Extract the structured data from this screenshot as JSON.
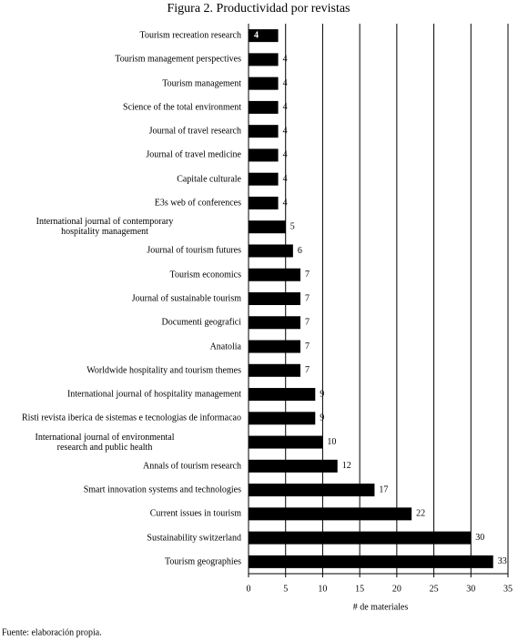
{
  "chart_data": {
    "type": "bar",
    "orientation": "horizontal",
    "title": "Figura 2. Productividad por revistas",
    "x_label": "# de materiales",
    "source": "Fuente: elaboración propia.",
    "categories": [
      "Tourism recreation research",
      "Tourism management perspectives",
      "Tourism management",
      "Science of the total environment",
      "Journal of travel research",
      "Journal of travel medicine",
      "Capitale culturale",
      "E3s web of conferences",
      "International journal of contemporary\nhospitality management",
      "Journal of tourism futures",
      "Tourism economics",
      "Journal of sustainable tourism",
      "Documenti geografici",
      "Anatolia",
      "Worldwide hospitality and tourism themes",
      "International journal of hospitality management",
      "Risti revista iberica de sistemas e tecnologias de informacao",
      "International journal of environmental\nresearch and public health",
      "Annals of tourism research",
      "Smart innovation systems and technologies",
      "Current issues in tourism",
      "Sustainability switzerland",
      "Tourism geographies"
    ],
    "values": [
      4,
      4,
      4,
      4,
      4,
      4,
      4,
      4,
      5,
      6,
      7,
      7,
      7,
      7,
      7,
      9,
      9,
      10,
      12,
      17,
      22,
      30,
      33
    ],
    "color": "#000000",
    "xlim": [
      0,
      35
    ],
    "xticks": [
      0,
      5,
      10,
      15,
      20,
      25,
      30,
      35
    ],
    "grid": true
  }
}
